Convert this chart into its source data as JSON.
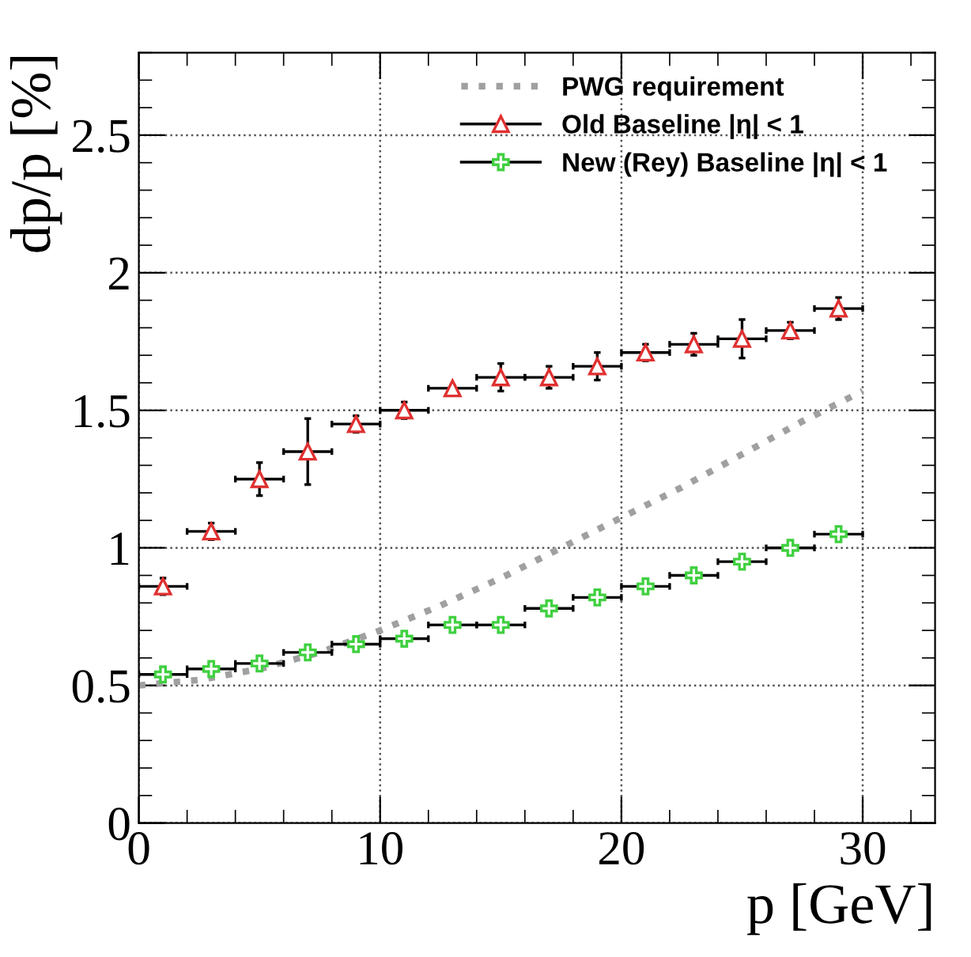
{
  "chart_data": {
    "type": "scatter",
    "xlabel": "p [GeV]",
    "ylabel": "dp/p [%]",
    "xlim": [
      0,
      33
    ],
    "ylim": [
      0,
      2.8
    ],
    "xticks": [
      0,
      10,
      20,
      30
    ],
    "yticks": [
      0,
      0.5,
      1,
      1.5,
      2,
      2.5
    ],
    "grid": true,
    "legend": "top right",
    "series": [
      {
        "name": "PWG requirement",
        "type": "line",
        "line_style": "dotted",
        "marker": "none",
        "color": "#a0a0a0",
        "x": [
          0,
          2.5,
          5,
          7.5,
          10,
          12.5,
          15,
          17.5,
          20,
          22.5,
          25,
          27.5,
          30
        ],
        "values": [
          0.5,
          0.52,
          0.56,
          0.62,
          0.7,
          0.79,
          0.89,
          1.0,
          1.11,
          1.22,
          1.34,
          1.46,
          1.57
        ]
      },
      {
        "name": "Old Baseline |η| < 1",
        "marker": "triangle",
        "color": "#e03030",
        "x": [
          1,
          3,
          5,
          7,
          9,
          11,
          13,
          15,
          17,
          19,
          21,
          23,
          25,
          27,
          29
        ],
        "values": [
          0.86,
          1.06,
          1.25,
          1.35,
          1.45,
          1.5,
          1.58,
          1.62,
          1.62,
          1.66,
          1.71,
          1.74,
          1.76,
          1.79,
          1.87
        ],
        "errors": [
          0.03,
          0.03,
          0.06,
          0.12,
          0.03,
          0.03,
          0.01,
          0.05,
          0.04,
          0.05,
          0.03,
          0.04,
          0.07,
          0.03,
          0.04
        ],
        "xerrors": [
          1,
          1,
          1,
          1,
          1,
          1,
          1,
          1,
          1,
          1,
          1,
          1,
          1,
          1,
          1
        ]
      },
      {
        "name": "New (Rey) Baseline |η| < 1",
        "marker": "cross",
        "color": "#40d040",
        "x": [
          1,
          3,
          5,
          7,
          9,
          11,
          13,
          15,
          17,
          19,
          21,
          23,
          25,
          27,
          29
        ],
        "values": [
          0.54,
          0.56,
          0.58,
          0.62,
          0.65,
          0.67,
          0.72,
          0.72,
          0.78,
          0.82,
          0.86,
          0.9,
          0.95,
          1.0,
          1.05
        ],
        "errors": [
          0.025,
          0.01,
          0.01,
          0.01,
          0.01,
          0.01,
          0.01,
          0.01,
          0.01,
          0.01,
          0.01,
          0.01,
          0.01,
          0.01,
          0.01
        ],
        "xerrors": [
          1,
          1,
          1,
          1,
          1,
          1,
          1,
          1,
          1,
          1,
          1,
          1,
          1,
          1,
          1
        ]
      }
    ]
  }
}
